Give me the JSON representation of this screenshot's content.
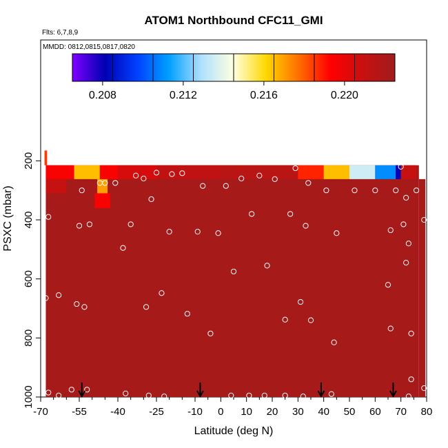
{
  "chart_data": {
    "type": "heatmap",
    "title": "ATOM1 Northbound CFC11_GMI",
    "subtitle_flights": "Flts: 6,7,8,9",
    "subtitle_dates": "MMDD: 0812,0815,0817,0820",
    "xlabel": "Latitude (deg N)",
    "ylabel": "PSXC (mbar)",
    "xlim": [
      -70,
      80
    ],
    "ylim": [
      1000,
      0
    ],
    "x_ticks": [
      -70,
      -55,
      -40,
      -25,
      -10,
      0,
      10,
      20,
      30,
      40,
      50,
      60,
      70,
      80
    ],
    "x_tick_labels": [
      "-70",
      "-55",
      "-40",
      "-25",
      "-10",
      "0",
      "10",
      "20",
      "30",
      "40",
      "50",
      "60",
      "70",
      "80"
    ],
    "y_ticks": [
      200,
      400,
      600,
      800,
      1000
    ],
    "y_tick_labels": [
      "200",
      "400",
      "600",
      "800",
      "1000"
    ],
    "colorbar": {
      "min": 0.2065,
      "max": 0.2225,
      "tick_values": [
        0.208,
        0.212,
        0.216,
        0.22
      ],
      "tick_labels": [
        "0.208",
        "0.212",
        "0.216",
        "0.220"
      ],
      "colors": [
        "#7f00ff",
        "#0000b3",
        "#0040ff",
        "#00a0ff",
        "#b0e0ff",
        "#ffffe0",
        "#ffd800",
        "#ff7000",
        "#ff0000",
        "#c81010",
        "#a01c1c"
      ]
    },
    "background_value": 0.2222,
    "strips": [
      {
        "lat": [
          -68.5,
          -67.5
        ],
        "p": [
          165,
          215
        ],
        "v": 0.2185
      },
      {
        "lat": [
          -68,
          -57
        ],
        "p": [
          215,
          262
        ],
        "v": 0.2195
      },
      {
        "lat": [
          -57,
          -47
        ],
        "p": [
          215,
          262
        ],
        "v": 0.2165
      },
      {
        "lat": [
          -47,
          -40
        ],
        "p": [
          215,
          262
        ],
        "v": 0.2195
      },
      {
        "lat": [
          -40,
          -25
        ],
        "p": [
          215,
          262
        ],
        "v": 0.2205
      },
      {
        "lat": [
          -25,
          0
        ],
        "p": [
          215,
          262
        ],
        "v": 0.2212
      },
      {
        "lat": [
          0,
          30
        ],
        "p": [
          215,
          262
        ],
        "v": 0.2215
      },
      {
        "lat": [
          30,
          40
        ],
        "p": [
          215,
          262
        ],
        "v": 0.2188
      },
      {
        "lat": [
          40,
          50
        ],
        "p": [
          215,
          262
        ],
        "v": 0.2165
      },
      {
        "lat": [
          50,
          60
        ],
        "p": [
          215,
          262
        ],
        "v": 0.2135
      },
      {
        "lat": [
          60,
          68
        ],
        "p": [
          215,
          262
        ],
        "v": 0.211
      },
      {
        "lat": [
          68,
          70
        ],
        "p": [
          215,
          262
        ],
        "v": 0.208
      },
      {
        "lat": [
          70,
          76
        ],
        "p": [
          215,
          262
        ],
        "v": 0.221
      },
      {
        "lat": [
          -68,
          -60
        ],
        "p": [
          262,
          310
        ],
        "v": 0.221
      },
      {
        "lat": [
          -48,
          -44
        ],
        "p": [
          262,
          310
        ],
        "v": 0.217
      },
      {
        "lat": [
          -49,
          -43
        ],
        "p": [
          310,
          360
        ],
        "v": 0.2195
      }
    ],
    "points": [
      {
        "lat": -67,
        "p": 390
      },
      {
        "lat": -68,
        "p": 665
      },
      {
        "lat": -67,
        "p": 985
      },
      {
        "lat": -63,
        "p": 655
      },
      {
        "lat": -63,
        "p": 995
      },
      {
        "lat": -58,
        "p": 975
      },
      {
        "lat": -56,
        "p": 685
      },
      {
        "lat": -55,
        "p": 420
      },
      {
        "lat": -53,
        "p": 695
      },
      {
        "lat": -52,
        "p": 975
      },
      {
        "lat": -51,
        "p": 415
      },
      {
        "lat": -54,
        "p": 300
      },
      {
        "lat": -47,
        "p": 275
      },
      {
        "lat": -45,
        "p": 275
      },
      {
        "lat": -41,
        "p": 275
      },
      {
        "lat": -38,
        "p": 495
      },
      {
        "lat": -37,
        "p": 988
      },
      {
        "lat": -35,
        "p": 415
      },
      {
        "lat": -33,
        "p": 250
      },
      {
        "lat": -30,
        "p": 260
      },
      {
        "lat": -29,
        "p": 695
      },
      {
        "lat": -28,
        "p": 995
      },
      {
        "lat": -27,
        "p": 330
      },
      {
        "lat": -25,
        "p": 240
      },
      {
        "lat": -23,
        "p": 648
      },
      {
        "lat": -22,
        "p": 998
      },
      {
        "lat": -20,
        "p": 440
      },
      {
        "lat": -19,
        "p": 245
      },
      {
        "lat": -15,
        "p": 242
      },
      {
        "lat": -13,
        "p": 718
      },
      {
        "lat": -9,
        "p": 440
      },
      {
        "lat": -7,
        "p": 285
      },
      {
        "lat": -4,
        "p": 785
      },
      {
        "lat": -1,
        "p": 445
      },
      {
        "lat": 2,
        "p": 285
      },
      {
        "lat": 4,
        "p": 995
      },
      {
        "lat": 5,
        "p": 575
      },
      {
        "lat": 8,
        "p": 260
      },
      {
        "lat": 11,
        "p": 995
      },
      {
        "lat": 12,
        "p": 380
      },
      {
        "lat": 15,
        "p": 250
      },
      {
        "lat": 17,
        "p": 995
      },
      {
        "lat": 18,
        "p": 555
      },
      {
        "lat": 21,
        "p": 262
      },
      {
        "lat": 25,
        "p": 738
      },
      {
        "lat": 25,
        "p": 995
      },
      {
        "lat": 27,
        "p": 380
      },
      {
        "lat": 29,
        "p": 225
      },
      {
        "lat": 31,
        "p": 678
      },
      {
        "lat": 32,
        "p": 998
      },
      {
        "lat": 33,
        "p": 420
      },
      {
        "lat": 34,
        "p": 275
      },
      {
        "lat": 35,
        "p": 740
      },
      {
        "lat": 41,
        "p": 300
      },
      {
        "lat": 43,
        "p": 990
      },
      {
        "lat": 44,
        "p": 815
      },
      {
        "lat": 45,
        "p": 445
      },
      {
        "lat": 52,
        "p": 300
      },
      {
        "lat": 60,
        "p": 300
      },
      {
        "lat": 65,
        "p": 620
      },
      {
        "lat": 66,
        "p": 768
      },
      {
        "lat": 66,
        "p": 435
      },
      {
        "lat": 68,
        "p": 300
      },
      {
        "lat": 70,
        "p": 220
      },
      {
        "lat": 71,
        "p": 415
      },
      {
        "lat": 72,
        "p": 325
      },
      {
        "lat": 72,
        "p": 545
      },
      {
        "lat": 73,
        "p": 998
      },
      {
        "lat": 73,
        "p": 480
      },
      {
        "lat": 74,
        "p": 785
      },
      {
        "lat": 74,
        "p": 940
      },
      {
        "lat": 76,
        "p": 300
      },
      {
        "lat": 79,
        "p": 400
      },
      {
        "lat": 79,
        "p": 970
      }
    ],
    "arrows": [
      -54,
      -8,
      39,
      67
    ]
  }
}
